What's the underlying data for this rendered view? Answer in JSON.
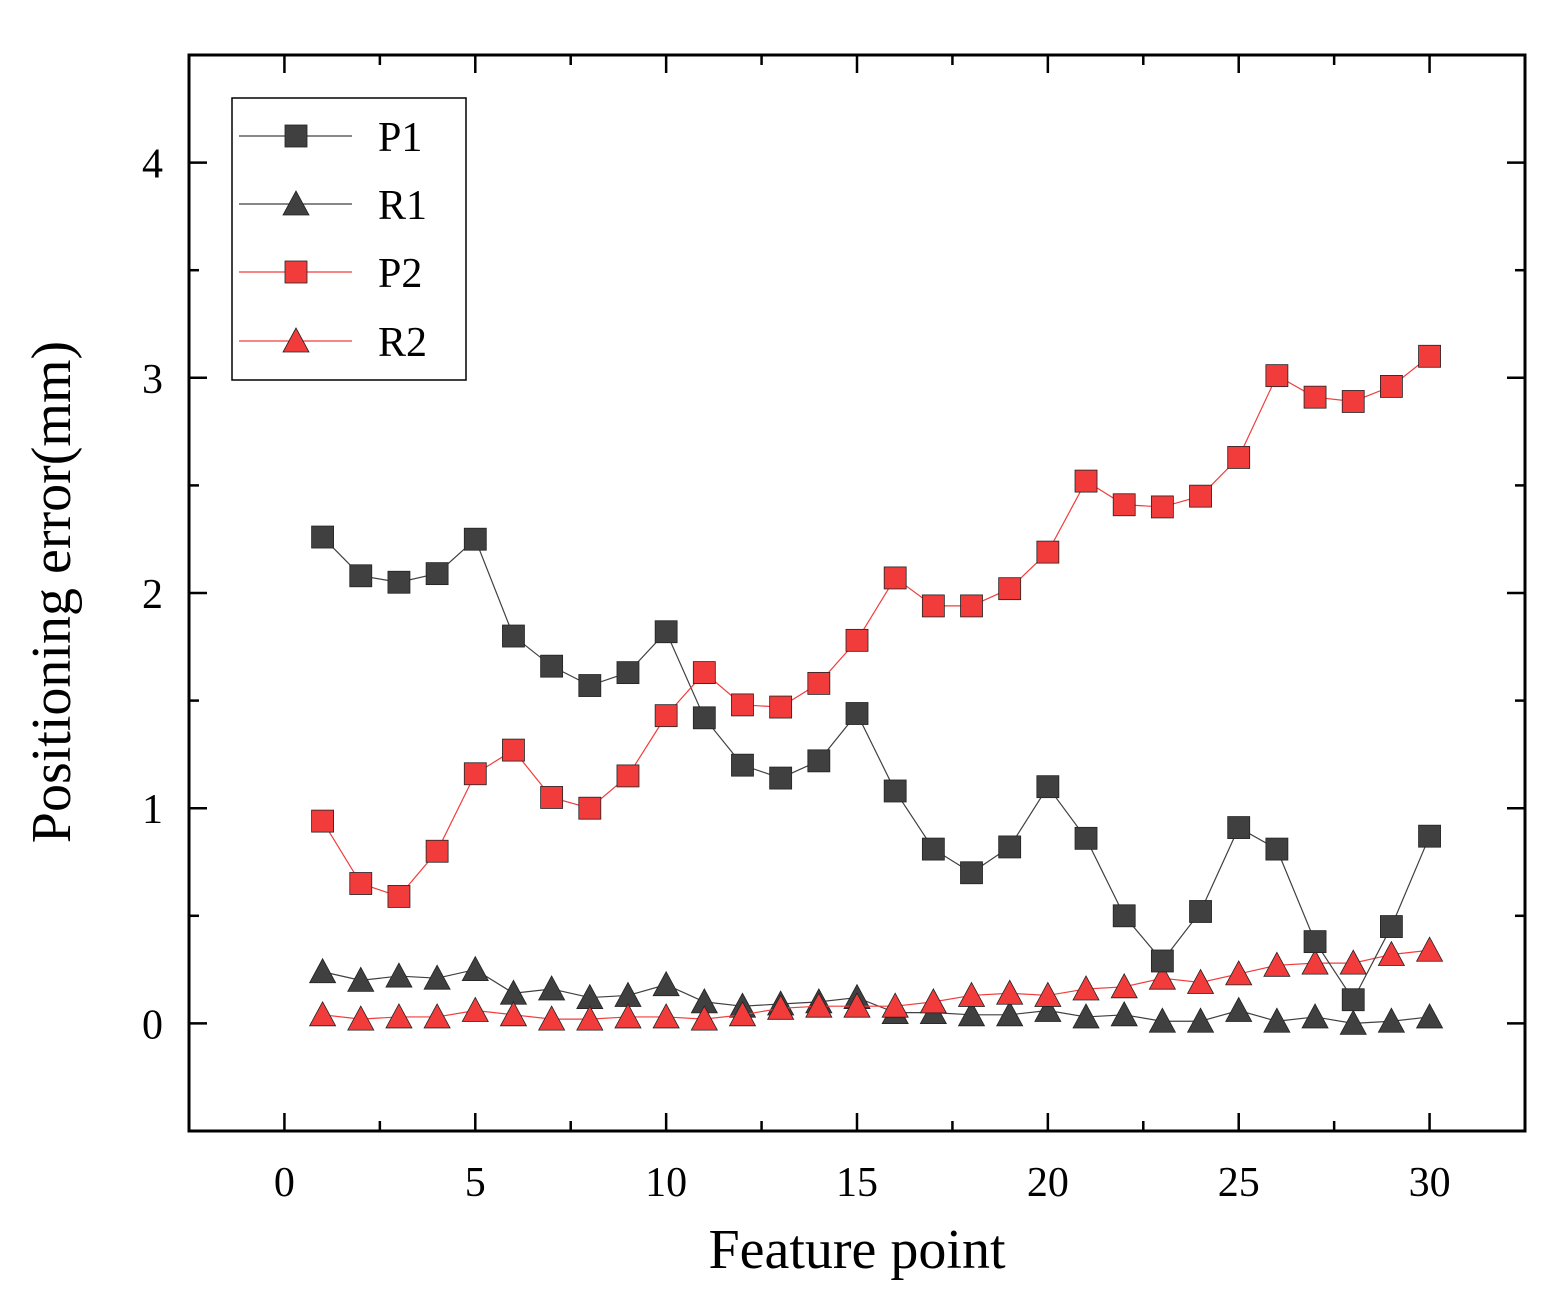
{
  "chart_data": {
    "type": "line",
    "title": "",
    "xlabel": "Feature point",
    "ylabel": "Positioning error(mm)",
    "xlim": [
      -2.5,
      32.5
    ],
    "ylim": [
      -0.5,
      4.5
    ],
    "xticks": [
      0,
      5,
      10,
      15,
      20,
      25,
      30
    ],
    "yticks": [
      0,
      1,
      2,
      3,
      4
    ],
    "xtick_labels": [
      "0",
      "5",
      "10",
      "15",
      "20",
      "25",
      "30"
    ],
    "ytick_labels": [
      "0",
      "1",
      "2",
      "3",
      "4"
    ],
    "grid": false,
    "legend_position": "top-left",
    "x": [
      1,
      2,
      3,
      4,
      5,
      6,
      7,
      8,
      9,
      10,
      11,
      12,
      13,
      14,
      15,
      16,
      17,
      18,
      19,
      20,
      21,
      22,
      23,
      24,
      25,
      26,
      27,
      28,
      29,
      30
    ],
    "series": [
      {
        "name": "P1",
        "marker": "square",
        "color": "#404040",
        "values": [
          2.26,
          2.08,
          2.05,
          2.09,
          2.25,
          1.8,
          1.66,
          1.57,
          1.63,
          1.82,
          1.42,
          1.2,
          1.14,
          1.22,
          1.44,
          1.08,
          0.81,
          0.7,
          0.82,
          1.1,
          0.86,
          0.5,
          0.29,
          0.52,
          0.91,
          0.81,
          0.38,
          0.11,
          0.45,
          0.87
        ]
      },
      {
        "name": "R1",
        "marker": "triangle",
        "color": "#404040",
        "values": [
          0.24,
          0.2,
          0.22,
          0.21,
          0.25,
          0.14,
          0.16,
          0.12,
          0.13,
          0.18,
          0.1,
          0.08,
          0.09,
          0.1,
          0.12,
          0.05,
          0.05,
          0.04,
          0.04,
          0.06,
          0.03,
          0.04,
          0.01,
          0.01,
          0.06,
          0.01,
          0.03,
          0.0,
          0.01,
          0.03
        ]
      },
      {
        "name": "P2",
        "marker": "square",
        "color": "#f23c3c",
        "values": [
          0.94,
          0.65,
          0.59,
          0.8,
          1.16,
          1.27,
          1.05,
          1.0,
          1.15,
          1.43,
          1.63,
          1.48,
          1.47,
          1.58,
          1.78,
          2.07,
          1.94,
          1.94,
          2.02,
          2.19,
          2.52,
          2.41,
          2.4,
          2.45,
          2.63,
          3.01,
          2.91,
          2.89,
          2.96,
          3.1
        ]
      },
      {
        "name": "R2",
        "marker": "triangle",
        "color": "#f23c3c",
        "values": [
          0.04,
          0.02,
          0.03,
          0.03,
          0.06,
          0.04,
          0.02,
          0.02,
          0.03,
          0.03,
          0.02,
          0.04,
          0.07,
          0.08,
          0.08,
          0.08,
          0.1,
          0.13,
          0.14,
          0.13,
          0.16,
          0.17,
          0.21,
          0.19,
          0.23,
          0.27,
          0.28,
          0.28,
          0.32,
          0.34
        ]
      }
    ]
  }
}
